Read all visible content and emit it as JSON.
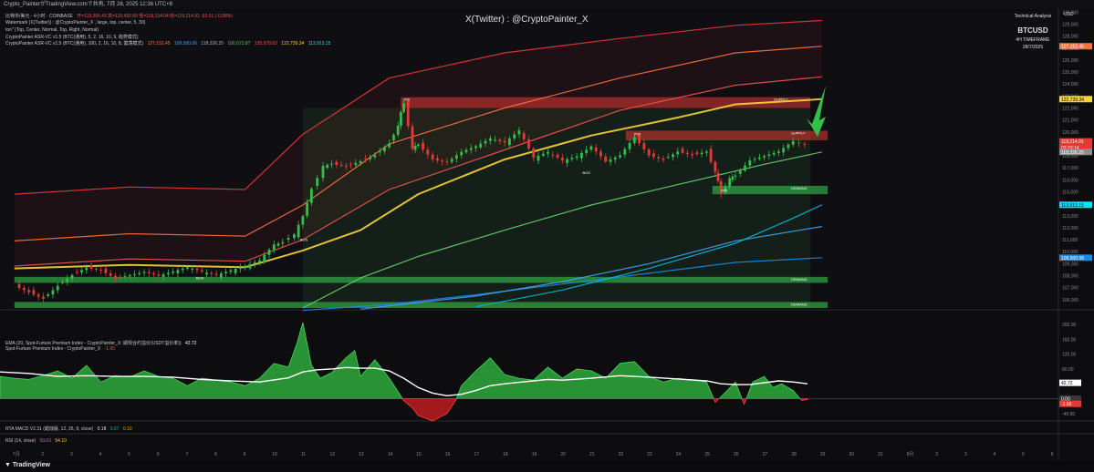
{
  "header": {
    "title_bar": "Crypto_PainterがTradingView.comで共有, 7月 28, 2025 12:36 UTC+8"
  },
  "legend": {
    "main_symbol": "比特币/美元 · 4小时 · COINBASE",
    "main_ohlc": "开=119,306.43  高=119,430.50  低=119,134.04  收=119,214.91  -91.51 (-0.08%)",
    "watermark_line": "Watermark (X(Twitter)) : @CryptoPainter_X , large, top, center, 5, 30)",
    "too_line": "too\" (Top, Center, Normal, Top, Right, Normal)",
    "asr1_line": "CryptoPainter ASR-VC v1.5 (BTC(通用), 5, 2, 16, 10, 9, 趋势模式)",
    "asr2_name": "CryptoPainter ASR-VC v1.5 (BTC(通用), 100, 2, 16, 10, 8, 震荡模式)",
    "asr2_values": [
      "127,152.45",
      "109,500.06",
      "118,326.25",
      "100,673.87",
      "135,978.62",
      "122,739.34",
      "113,913.15"
    ],
    "asr2_colors": [
      "#ff7043",
      "#42a5f5",
      "#b0b0b0",
      "#66bb6a",
      "#ef5350",
      "#ffca28",
      "#4dd0e1"
    ],
    "ema_line": "EMA (20, Spot-Furture Premium Index - CryptoPainter_X: 期现合约溢价(USDT溢价率))",
    "ema_value": "42.72",
    "spi_line": "Spot-Furture Premium Index - CryptoPainter_X",
    "spi_value": "-1.65",
    "spi_extra": "0.00",
    "macd_line": "RTA MACD V2.31 (蜡烛版, 12, 26, 9, close)",
    "macd_values": [
      "0.18",
      "0.27",
      "0.10"
    ],
    "rsi_line": "RSI (14, close)",
    "rsi_values": [
      "59.03",
      "54.10"
    ]
  },
  "watermark": "X(Twitter) : @CryptoPainter_X",
  "analysis_box": {
    "title": "Technical Analysis",
    "symbol": "BTCUSD",
    "timeframe": "4H TIMEFRAME",
    "date": "28/7/2025"
  },
  "currency": "USD",
  "price_labels": [
    {
      "text": "127,152.45",
      "value": 127152.45,
      "color": "#ff7043"
    },
    {
      "text": "122,739.34",
      "value": 122739.34,
      "color": "#f9d33b",
      "textcolor": "#000"
    },
    {
      "text": "119,214.91",
      "value": 119214.91,
      "color": "#e53935"
    },
    {
      "text": "03:23:14",
      "value": 118700,
      "color": "#e53935"
    },
    {
      "text": "118,326.25",
      "value": 118326.25,
      "color": "#8e8e8e"
    },
    {
      "text": "113,913.15",
      "value": 113913.15,
      "color": "#00e5ff",
      "textcolor": "#000"
    },
    {
      "text": "109,500.06",
      "value": 109500.06,
      "color": "#1e88e5"
    }
  ],
  "indicator_labels": [
    {
      "text": "42.72",
      "value": 42.72,
      "color": "#ffffff",
      "textcolor": "#000"
    },
    {
      "text": "0.00",
      "value": 0,
      "color": "#3a3a3a"
    },
    {
      "text": "-1.65",
      "value": -1.65,
      "color": "#e53935"
    }
  ],
  "zones": [
    {
      "label": "SUPPLY",
      "kind": "supply",
      "top": 122900,
      "bottom": 122000,
      "x_start": 14.4,
      "x_end": 28.6
    },
    {
      "label": "SUPPLY",
      "kind": "supply",
      "top": 120100,
      "bottom": 119300,
      "x_start": 22.2,
      "x_end": 29.2
    },
    {
      "label": "DEMAND",
      "kind": "demand",
      "top": 115500,
      "bottom": 114800,
      "x_start": 25.2,
      "x_end": 29.2
    },
    {
      "label": "DEMAND",
      "kind": "demand",
      "top": 107900,
      "bottom": 107400,
      "x_start": 1.0,
      "x_end": 29.2
    },
    {
      "label": "DEMAND",
      "kind": "demand",
      "top": 105800,
      "bottom": 105300,
      "x_start": 1.0,
      "x_end": 29.2
    }
  ],
  "markers": [
    {
      "label": "BOS",
      "x": 20.7,
      "y": 116500
    },
    {
      "label": "BOS",
      "x": 7.3,
      "y": 107700
    },
    {
      "label": "BOS",
      "x": 10.9,
      "y": 110900
    },
    {
      "label": "POI",
      "x": 14.5,
      "y": 122600
    },
    {
      "label": "POI",
      "x": 22.5,
      "y": 119700
    },
    {
      "label": "POI",
      "x": 25.5,
      "y": 115000
    }
  ],
  "chart_data": {
    "type": "line",
    "title": "",
    "ylim": [
      105300,
      130100
    ],
    "xlim": [
      0.5,
      37.2
    ],
    "y_ticks": [
      106000,
      107000,
      108000,
      109000,
      110000,
      111000,
      112000,
      113000,
      114000,
      115000,
      116000,
      117000,
      118000,
      119000,
      120000,
      121000,
      122000,
      123000,
      124000,
      125000,
      126000,
      127000,
      128000,
      129000,
      130000
    ],
    "x_ticks": [
      {
        "x": 1,
        "label": "7月"
      },
      {
        "x": 2,
        "label": "2"
      },
      {
        "x": 3,
        "label": "3"
      },
      {
        "x": 4,
        "label": "4"
      },
      {
        "x": 5,
        "label": "5"
      },
      {
        "x": 6,
        "label": "6"
      },
      {
        "x": 7,
        "label": "7"
      },
      {
        "x": 8,
        "label": "8"
      },
      {
        "x": 9,
        "label": "9"
      },
      {
        "x": 10,
        "label": "10"
      },
      {
        "x": 11,
        "label": "11"
      },
      {
        "x": 12,
        "label": "12"
      },
      {
        "x": 13,
        "label": "13"
      },
      {
        "x": 14,
        "label": "14"
      },
      {
        "x": 15,
        "label": "15"
      },
      {
        "x": 16,
        "label": "16"
      },
      {
        "x": 17,
        "label": "17"
      },
      {
        "x": 18,
        "label": "18"
      },
      {
        "x": 19,
        "label": "19"
      },
      {
        "x": 20,
        "label": "20"
      },
      {
        "x": 21,
        "label": "21"
      },
      {
        "x": 22,
        "label": "22"
      },
      {
        "x": 23,
        "label": "23"
      },
      {
        "x": 24,
        "label": "24"
      },
      {
        "x": 25,
        "label": "25"
      },
      {
        "x": 26,
        "label": "26"
      },
      {
        "x": 27,
        "label": "27"
      },
      {
        "x": 28,
        "label": "28"
      },
      {
        "x": 29,
        "label": "29"
      },
      {
        "x": 30,
        "label": "30"
      },
      {
        "x": 31,
        "label": "31"
      },
      {
        "x": 32,
        "label": "8月"
      },
      {
        "x": 33,
        "label": "2"
      },
      {
        "x": 34,
        "label": "3"
      },
      {
        "x": 35,
        "label": "4"
      },
      {
        "x": 36,
        "label": "5"
      },
      {
        "x": 37,
        "label": "6"
      }
    ],
    "price_path": [
      [
        1.0,
        107300
      ],
      [
        1.5,
        106800
      ],
      [
        2.0,
        106300
      ],
      [
        2.5,
        107400
      ],
      [
        3.0,
        108300
      ],
      [
        3.5,
        108900
      ],
      [
        4.0,
        108600
      ],
      [
        4.5,
        107900
      ],
      [
        5.0,
        108100
      ],
      [
        5.5,
        108300
      ],
      [
        6.0,
        107900
      ],
      [
        6.5,
        108200
      ],
      [
        7.0,
        108500
      ],
      [
        7.5,
        108100
      ],
      [
        8.0,
        107800
      ],
      [
        8.5,
        108200
      ],
      [
        9.0,
        108600
      ],
      [
        9.5,
        109100
      ],
      [
        10.0,
        110500
      ],
      [
        10.3,
        111000
      ],
      [
        10.7,
        111200
      ],
      [
        11.0,
        113000
      ],
      [
        11.3,
        115500
      ],
      [
        11.7,
        117000
      ],
      [
        12.0,
        117500
      ],
      [
        12.5,
        117300
      ],
      [
        13.0,
        117800
      ],
      [
        13.5,
        118300
      ],
      [
        14.0,
        119300
      ],
      [
        14.3,
        120500
      ],
      [
        14.5,
        122600
      ],
      [
        14.8,
        118500
      ],
      [
        15.0,
        119100
      ],
      [
        15.5,
        117800
      ],
      [
        16.0,
        117500
      ],
      [
        16.5,
        118300
      ],
      [
        17.0,
        118700
      ],
      [
        17.5,
        119300
      ],
      [
        18.0,
        118900
      ],
      [
        18.5,
        119900
      ],
      [
        19.0,
        117600
      ],
      [
        19.5,
        118100
      ],
      [
        20.0,
        117400
      ],
      [
        20.5,
        117800
      ],
      [
        21.0,
        118700
      ],
      [
        21.5,
        117500
      ],
      [
        22.0,
        118100
      ],
      [
        22.5,
        119700
      ],
      [
        23.0,
        118200
      ],
      [
        23.5,
        117900
      ],
      [
        24.0,
        118600
      ],
      [
        24.5,
        118300
      ],
      [
        25.0,
        118600
      ],
      [
        25.3,
        116600
      ],
      [
        25.5,
        115000
      ],
      [
        25.8,
        116000
      ],
      [
        26.0,
        116500
      ],
      [
        26.5,
        117700
      ],
      [
        27.0,
        118000
      ],
      [
        27.5,
        118300
      ],
      [
        28.0,
        119100
      ],
      [
        28.4,
        119214.91
      ]
    ],
    "series": [
      {
        "color": "#e53935",
        "values": [
          [
            1,
            114800
          ],
          [
            5,
            115400
          ],
          [
            9,
            115200
          ],
          [
            11,
            119800
          ],
          [
            14,
            124500
          ],
          [
            18,
            126600
          ],
          [
            22,
            127800
          ],
          [
            26,
            128900
          ],
          [
            29,
            129300
          ]
        ]
      },
      {
        "color": "#ff7043",
        "values": [
          [
            1,
            110900
          ],
          [
            5,
            111500
          ],
          [
            9,
            111300
          ],
          [
            11,
            113900
          ],
          [
            14,
            119000
          ],
          [
            18,
            122000
          ],
          [
            22,
            124500
          ],
          [
            26,
            126600
          ],
          [
            29,
            127152
          ]
        ]
      },
      {
        "color": "#ef5350",
        "values": [
          [
            1,
            108800
          ],
          [
            5,
            109400
          ],
          [
            9,
            109200
          ],
          [
            11,
            111000
          ],
          [
            14,
            115200
          ],
          [
            18,
            118500
          ],
          [
            22,
            121800
          ],
          [
            26,
            123900
          ],
          [
            29,
            124600
          ]
        ]
      },
      {
        "color": "#f9d33b",
        "values": [
          [
            1,
            108600
          ],
          [
            5,
            108900
          ],
          [
            9,
            108700
          ],
          [
            11,
            110100
          ],
          [
            13,
            111800
          ],
          [
            15,
            114800
          ],
          [
            18,
            117700
          ],
          [
            21,
            119700
          ],
          [
            24,
            121200
          ],
          [
            26,
            122300
          ],
          [
            29,
            122739
          ]
        ]
      },
      {
        "color": "#66d36e",
        "values": [
          [
            11,
            105300
          ],
          [
            13,
            107800
          ],
          [
            15,
            109600
          ],
          [
            18,
            111800
          ],
          [
            21,
            113900
          ],
          [
            24,
            115600
          ],
          [
            27,
            117300
          ],
          [
            29,
            118326
          ]
        ]
      },
      {
        "color": "#1e88e5",
        "values": [
          [
            11,
            105100
          ],
          [
            14,
            105600
          ],
          [
            17,
            106400
          ],
          [
            20,
            107300
          ],
          [
            23,
            108200
          ],
          [
            26,
            109100
          ],
          [
            29,
            109500
          ]
        ]
      },
      {
        "color": "#42a5f5",
        "values": [
          [
            13,
            105200
          ],
          [
            17,
            106300
          ],
          [
            20,
            107500
          ],
          [
            23,
            109000
          ],
          [
            26,
            110900
          ],
          [
            29,
            112100
          ]
        ]
      },
      {
        "color": "#00bcd4",
        "values": [
          [
            17,
            105400
          ],
          [
            20,
            106800
          ],
          [
            23,
            108600
          ],
          [
            26,
            110700
          ],
          [
            28,
            112800
          ],
          [
            29,
            113913
          ]
        ]
      }
    ],
    "candles_note": "",
    "premium_index": {
      "ylim": [
        -60,
        205
      ],
      "ticks": [
        200,
        160,
        120,
        80,
        40,
        0,
        -40
      ],
      "values": [
        [
          0.5,
          60
        ],
        [
          1,
          55
        ],
        [
          1.5,
          52
        ],
        [
          2,
          62
        ],
        [
          2.5,
          75
        ],
        [
          3,
          55
        ],
        [
          3.5,
          90
        ],
        [
          4,
          45
        ],
        [
          4.5,
          62
        ],
        [
          5,
          58
        ],
        [
          5.5,
          75
        ],
        [
          6,
          60
        ],
        [
          6.5,
          55
        ],
        [
          7,
          35
        ],
        [
          7.5,
          55
        ],
        [
          8,
          50
        ],
        [
          8.5,
          45
        ],
        [
          9,
          35
        ],
        [
          9.5,
          55
        ],
        [
          10,
          95
        ],
        [
          10.5,
          85
        ],
        [
          10.8,
          150
        ],
        [
          11,
          205
        ],
        [
          11.3,
          90
        ],
        [
          11.6,
          55
        ],
        [
          12,
          70
        ],
        [
          12.5,
          110
        ],
        [
          12.8,
          130
        ],
        [
          13,
          60
        ],
        [
          13.5,
          105
        ],
        [
          14,
          55
        ],
        [
          14.5,
          -5
        ],
        [
          14.8,
          -25
        ],
        [
          15,
          -45
        ],
        [
          15.5,
          -60
        ],
        [
          16,
          -40
        ],
        [
          16.3,
          -5
        ],
        [
          16.5,
          35
        ],
        [
          17,
          75
        ],
        [
          17.5,
          110
        ],
        [
          18,
          65
        ],
        [
          18.5,
          55
        ],
        [
          19,
          50
        ],
        [
          19.5,
          85
        ],
        [
          20,
          55
        ],
        [
          20.5,
          80
        ],
        [
          21,
          75
        ],
        [
          21.5,
          55
        ],
        [
          22,
          95
        ],
        [
          22.5,
          100
        ],
        [
          23,
          60
        ],
        [
          23.5,
          45
        ],
        [
          24,
          55
        ],
        [
          24.5,
          50
        ],
        [
          25,
          45
        ],
        [
          25.3,
          -10
        ],
        [
          25.5,
          5
        ],
        [
          26,
          45
        ],
        [
          26.3,
          -15
        ],
        [
          26.6,
          45
        ],
        [
          27,
          60
        ],
        [
          27.3,
          30
        ],
        [
          27.6,
          40
        ],
        [
          28,
          22
        ],
        [
          28.3,
          -5
        ],
        [
          28.5,
          -2
        ]
      ],
      "ema": [
        [
          0.5,
          72
        ],
        [
          1.5,
          68
        ],
        [
          2.5,
          60
        ],
        [
          3.5,
          62
        ],
        [
          4.5,
          60
        ],
        [
          5.5,
          60
        ],
        [
          6.5,
          58
        ],
        [
          7.5,
          52
        ],
        [
          8.5,
          48
        ],
        [
          9.5,
          45
        ],
        [
          10.5,
          56
        ],
        [
          11,
          72
        ],
        [
          11.5,
          78
        ],
        [
          12,
          80
        ],
        [
          12.5,
          84
        ],
        [
          13,
          82
        ],
        [
          13.5,
          82
        ],
        [
          14,
          75
        ],
        [
          14.5,
          55
        ],
        [
          15,
          30
        ],
        [
          15.5,
          15
        ],
        [
          16,
          8
        ],
        [
          16.5,
          12
        ],
        [
          17,
          22
        ],
        [
          17.5,
          35
        ],
        [
          18,
          40
        ],
        [
          18.5,
          44
        ],
        [
          19,
          48
        ],
        [
          19.5,
          52
        ],
        [
          20,
          50
        ],
        [
          21,
          55
        ],
        [
          22,
          62
        ],
        [
          23,
          58
        ],
        [
          24,
          53
        ],
        [
          25,
          48
        ],
        [
          25.5,
          40
        ],
        [
          26,
          38
        ],
        [
          26.5,
          38
        ],
        [
          27,
          43
        ],
        [
          27.5,
          48
        ],
        [
          28,
          45
        ],
        [
          28.5,
          40
        ]
      ]
    }
  }
}
